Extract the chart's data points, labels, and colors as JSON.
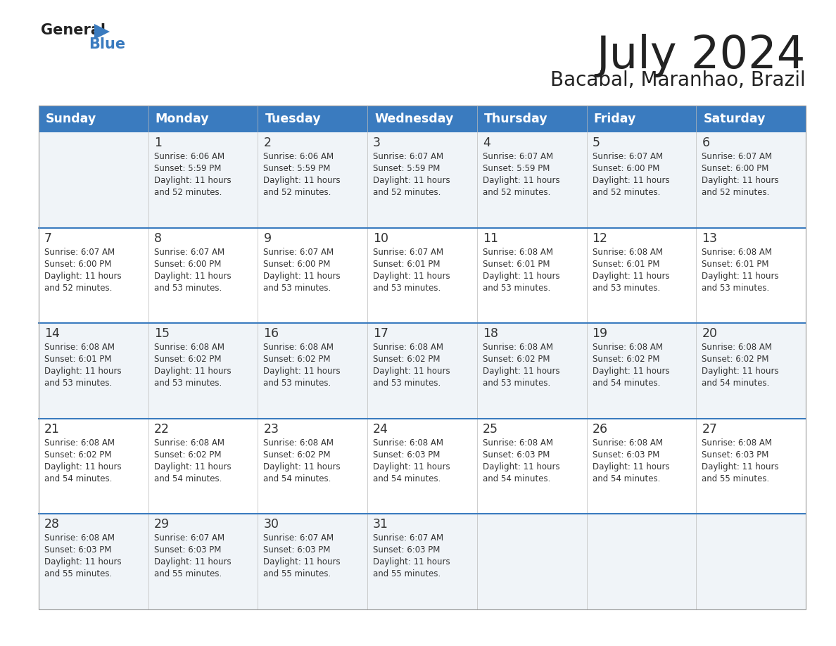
{
  "title": "July 2024",
  "subtitle": "Bacabal, Maranhao, Brazil",
  "header_bg": "#3a7bbf",
  "header_text": "#ffffff",
  "row_bg_light": "#f0f4f8",
  "row_bg_white": "#ffffff",
  "separator_color": "#3a7bbf",
  "text_color": "#333333",
  "days_of_week": [
    "Sunday",
    "Monday",
    "Tuesday",
    "Wednesday",
    "Thursday",
    "Friday",
    "Saturday"
  ],
  "calendar": [
    [
      {
        "day": "",
        "sunrise": "",
        "sunset": "",
        "daylight": ""
      },
      {
        "day": "1",
        "sunrise": "6:06 AM",
        "sunset": "5:59 PM",
        "daylight": "11 hours\nand 52 minutes."
      },
      {
        "day": "2",
        "sunrise": "6:06 AM",
        "sunset": "5:59 PM",
        "daylight": "11 hours\nand 52 minutes."
      },
      {
        "day": "3",
        "sunrise": "6:07 AM",
        "sunset": "5:59 PM",
        "daylight": "11 hours\nand 52 minutes."
      },
      {
        "day": "4",
        "sunrise": "6:07 AM",
        "sunset": "5:59 PM",
        "daylight": "11 hours\nand 52 minutes."
      },
      {
        "day": "5",
        "sunrise": "6:07 AM",
        "sunset": "6:00 PM",
        "daylight": "11 hours\nand 52 minutes."
      },
      {
        "day": "6",
        "sunrise": "6:07 AM",
        "sunset": "6:00 PM",
        "daylight": "11 hours\nand 52 minutes."
      }
    ],
    [
      {
        "day": "7",
        "sunrise": "6:07 AM",
        "sunset": "6:00 PM",
        "daylight": "11 hours\nand 52 minutes."
      },
      {
        "day": "8",
        "sunrise": "6:07 AM",
        "sunset": "6:00 PM",
        "daylight": "11 hours\nand 53 minutes."
      },
      {
        "day": "9",
        "sunrise": "6:07 AM",
        "sunset": "6:00 PM",
        "daylight": "11 hours\nand 53 minutes."
      },
      {
        "day": "10",
        "sunrise": "6:07 AM",
        "sunset": "6:01 PM",
        "daylight": "11 hours\nand 53 minutes."
      },
      {
        "day": "11",
        "sunrise": "6:08 AM",
        "sunset": "6:01 PM",
        "daylight": "11 hours\nand 53 minutes."
      },
      {
        "day": "12",
        "sunrise": "6:08 AM",
        "sunset": "6:01 PM",
        "daylight": "11 hours\nand 53 minutes."
      },
      {
        "day": "13",
        "sunrise": "6:08 AM",
        "sunset": "6:01 PM",
        "daylight": "11 hours\nand 53 minutes."
      }
    ],
    [
      {
        "day": "14",
        "sunrise": "6:08 AM",
        "sunset": "6:01 PM",
        "daylight": "11 hours\nand 53 minutes."
      },
      {
        "day": "15",
        "sunrise": "6:08 AM",
        "sunset": "6:02 PM",
        "daylight": "11 hours\nand 53 minutes."
      },
      {
        "day": "16",
        "sunrise": "6:08 AM",
        "sunset": "6:02 PM",
        "daylight": "11 hours\nand 53 minutes."
      },
      {
        "day": "17",
        "sunrise": "6:08 AM",
        "sunset": "6:02 PM",
        "daylight": "11 hours\nand 53 minutes."
      },
      {
        "day": "18",
        "sunrise": "6:08 AM",
        "sunset": "6:02 PM",
        "daylight": "11 hours\nand 53 minutes."
      },
      {
        "day": "19",
        "sunrise": "6:08 AM",
        "sunset": "6:02 PM",
        "daylight": "11 hours\nand 54 minutes."
      },
      {
        "day": "20",
        "sunrise": "6:08 AM",
        "sunset": "6:02 PM",
        "daylight": "11 hours\nand 54 minutes."
      }
    ],
    [
      {
        "day": "21",
        "sunrise": "6:08 AM",
        "sunset": "6:02 PM",
        "daylight": "11 hours\nand 54 minutes."
      },
      {
        "day": "22",
        "sunrise": "6:08 AM",
        "sunset": "6:02 PM",
        "daylight": "11 hours\nand 54 minutes."
      },
      {
        "day": "23",
        "sunrise": "6:08 AM",
        "sunset": "6:02 PM",
        "daylight": "11 hours\nand 54 minutes."
      },
      {
        "day": "24",
        "sunrise": "6:08 AM",
        "sunset": "6:03 PM",
        "daylight": "11 hours\nand 54 minutes."
      },
      {
        "day": "25",
        "sunrise": "6:08 AM",
        "sunset": "6:03 PM",
        "daylight": "11 hours\nand 54 minutes."
      },
      {
        "day": "26",
        "sunrise": "6:08 AM",
        "sunset": "6:03 PM",
        "daylight": "11 hours\nand 54 minutes."
      },
      {
        "day": "27",
        "sunrise": "6:08 AM",
        "sunset": "6:03 PM",
        "daylight": "11 hours\nand 55 minutes."
      }
    ],
    [
      {
        "day": "28",
        "sunrise": "6:08 AM",
        "sunset": "6:03 PM",
        "daylight": "11 hours\nand 55 minutes."
      },
      {
        "day": "29",
        "sunrise": "6:07 AM",
        "sunset": "6:03 PM",
        "daylight": "11 hours\nand 55 minutes."
      },
      {
        "day": "30",
        "sunrise": "6:07 AM",
        "sunset": "6:03 PM",
        "daylight": "11 hours\nand 55 minutes."
      },
      {
        "day": "31",
        "sunrise": "6:07 AM",
        "sunset": "6:03 PM",
        "daylight": "11 hours\nand 55 minutes."
      },
      {
        "day": "",
        "sunrise": "",
        "sunset": "",
        "daylight": ""
      },
      {
        "day": "",
        "sunrise": "",
        "sunset": "",
        "daylight": ""
      },
      {
        "day": "",
        "sunrise": "",
        "sunset": "",
        "daylight": ""
      }
    ]
  ]
}
